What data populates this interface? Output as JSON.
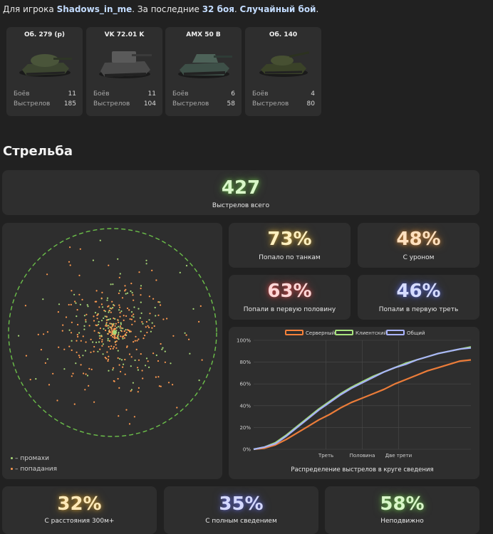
{
  "header": {
    "prefix": "Для игрока ",
    "player": "Shadows_in_me",
    "middle": ". За последние ",
    "battles": "32 боя",
    "dot": ". ",
    "mode": "Случайный бой",
    "end": "."
  },
  "tanks": [
    {
      "name": "Об. 279 (р)",
      "battles_label": "Боёв",
      "battles": "11",
      "shots_label": "Выстрелов",
      "shots": "185"
    },
    {
      "name": "VK 72.01 K",
      "battles_label": "Боёв",
      "battles": "11",
      "shots_label": "Выстрелов",
      "shots": "104"
    },
    {
      "name": "AMX 50 B",
      "battles_label": "Боёв",
      "battles": "6",
      "shots_label": "Выстрелов",
      "shots": "58"
    },
    {
      "name": "Об. 140",
      "battles_label": "Боёв",
      "battles": "4",
      "shots_label": "Выстрелов",
      "shots": "80"
    }
  ],
  "section_title": "Стрельба",
  "total": {
    "value": "427",
    "label": "Выстрелов всего"
  },
  "stats": {
    "hit_tanks": {
      "value": "73%",
      "label": "Попало по танкам"
    },
    "damage": {
      "value": "48%",
      "label": "С уроном"
    },
    "first_half": {
      "value": "63%",
      "label": "Попали в первую половину"
    },
    "first_third": {
      "value": "46%",
      "label": "Попали в первую треть"
    },
    "far": {
      "value": "32%",
      "label": "С расстояния 300м+"
    },
    "full_aim": {
      "value": "35%",
      "label": "С полным сведением"
    },
    "stationary": {
      "value": "58%",
      "label": "Неподвижно"
    }
  },
  "scatter_legend": {
    "miss": "– промахи",
    "hit": "– попадания"
  },
  "colors": {
    "total": "#d9f7c9",
    "hit_tanks": "#fff0c0",
    "damage": "#ffe0bf",
    "first_half": "#ffd6d6",
    "first_third": "#d6dcff",
    "far": "#ffe9b8",
    "full_aim": "#d4d8ff",
    "stationary": "#d8f6c8",
    "miss": "#a8d878",
    "hit": "#ff9a50",
    "circle": "#6cc04a"
  },
  "chart_data": {
    "type": "line",
    "title": "Распределение выстрелов в круге сведения",
    "legend_position": "top",
    "y_ticks": [
      "0%",
      "20%",
      "40%",
      "60%",
      "80%",
      "100%"
    ],
    "ylim": [
      0,
      100
    ],
    "xlim": [
      0,
      1
    ],
    "x_ticks": [
      {
        "label": "Треть",
        "x": 0.333
      },
      {
        "label": "Половина",
        "x": 0.5
      },
      {
        "label": "Две трети",
        "x": 0.667
      }
    ],
    "x": [
      0,
      0.05,
      0.1,
      0.15,
      0.2,
      0.25,
      0.3,
      0.35,
      0.4,
      0.45,
      0.5,
      0.55,
      0.6,
      0.65,
      0.7,
      0.75,
      0.8,
      0.85,
      0.9,
      0.95,
      1.0
    ],
    "series": [
      {
        "name": "Серверный",
        "color": "#f5813a",
        "values": [
          0,
          1,
          4,
          9,
          15,
          21,
          27,
          32,
          38,
          43,
          47,
          51,
          55,
          60,
          64,
          68,
          72,
          75,
          78,
          81,
          82
        ]
      },
      {
        "name": "Клиентский",
        "color": "#a8e37e",
        "values": [
          0,
          2,
          6,
          13,
          21,
          29,
          37,
          44,
          51,
          57,
          62,
          67,
          71,
          75,
          79,
          82,
          85,
          88,
          90,
          92,
          94
        ]
      },
      {
        "name": "Общий",
        "color": "#aab4ff",
        "values": [
          0,
          2,
          5,
          12,
          20,
          28,
          36,
          43,
          50,
          56,
          61,
          66,
          71,
          75,
          78,
          82,
          85,
          88,
          90,
          92,
          93
        ]
      }
    ],
    "grid": true
  },
  "scatter_data": {
    "type": "scatter",
    "miss_points": 150,
    "hit_points": 277
  }
}
